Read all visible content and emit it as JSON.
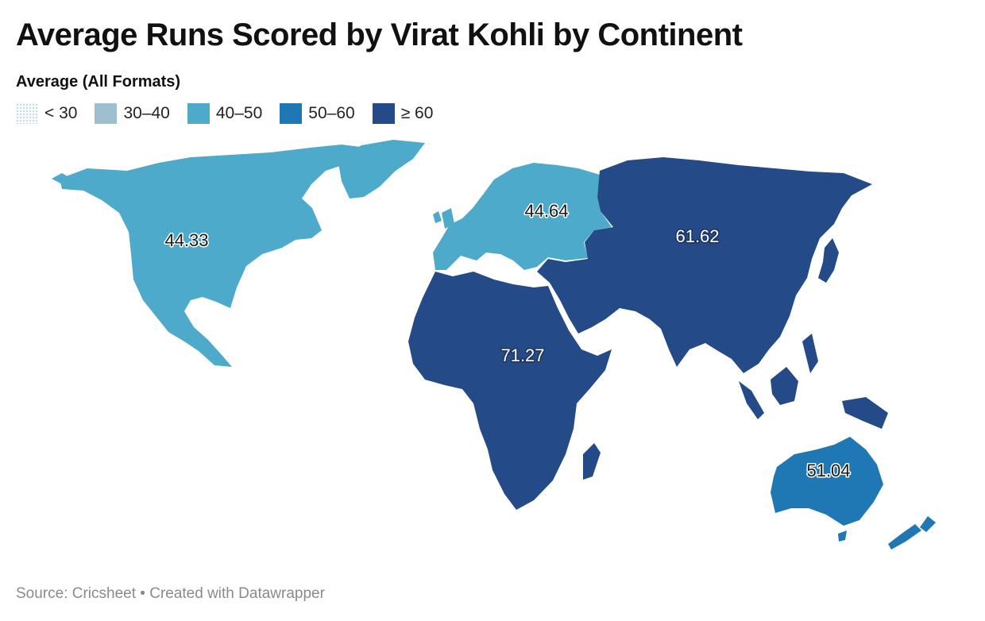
{
  "title": "Average Runs Scored by Virat Kohli by Continent",
  "legend": {
    "title": "Average (All Formats)",
    "bins": [
      {
        "label": "< 30",
        "color": "#f7fafc",
        "style": "dotted"
      },
      {
        "label": "30–40",
        "color": "#9dbfcf"
      },
      {
        "label": "40–50",
        "color": "#4daacb"
      },
      {
        "label": "50–60",
        "color": "#1f78b4"
      },
      {
        "label": "≥ 60",
        "color": "#244a88"
      }
    ]
  },
  "continents": [
    {
      "name": "North America",
      "value": "44.33",
      "color": "#4daacb"
    },
    {
      "name": "Europe",
      "value": "44.64",
      "color": "#4daacb"
    },
    {
      "name": "Asia",
      "value": "61.62",
      "color": "#244a88"
    },
    {
      "name": "Africa",
      "value": "71.27",
      "color": "#244a88"
    },
    {
      "name": "Oceania",
      "value": "51.04",
      "color": "#1f78b4"
    }
  ],
  "source": "Source: Cricsheet • Created with Datawrapper"
}
